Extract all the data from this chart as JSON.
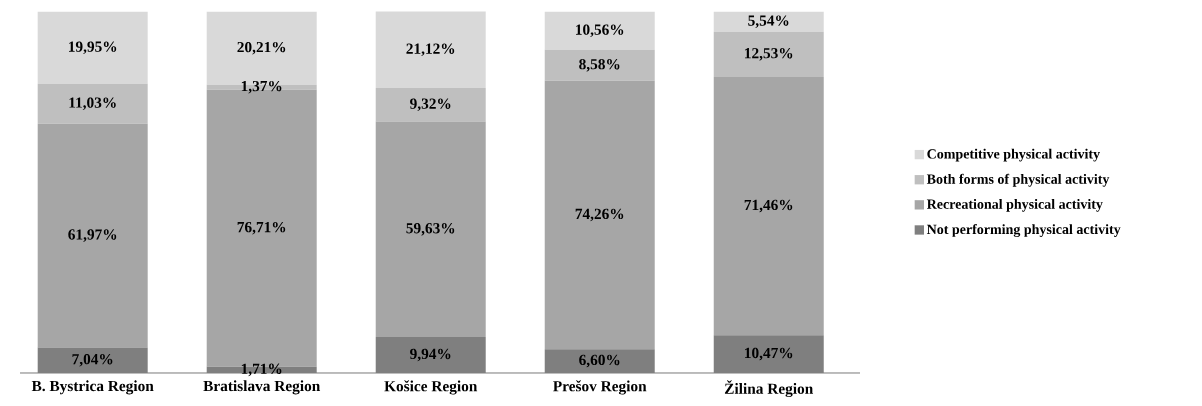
{
  "chart_data": {
    "type": "bar",
    "stacked": true,
    "legend": "right",
    "tick_labels": "x",
    "ylim": [
      0,
      100
    ],
    "categories": [
      "B. Bystrica Region",
      "Bratislava Region",
      "Košice Region",
      "Prešov Region",
      "Žilina Region"
    ],
    "series": [
      {
        "name": "Not performing physical activity",
        "color": "#7f7f7f",
        "values": [
          7.04,
          1.71,
          9.94,
          6.6,
          10.47
        ],
        "value_labels": [
          "7,04%",
          "1,71%",
          "9,94%",
          "6,60%",
          "10,47%"
        ]
      },
      {
        "name": "Recreational physical activity",
        "color": "#a6a6a6",
        "values": [
          61.97,
          76.71,
          59.63,
          74.26,
          71.46
        ],
        "value_labels": [
          "61,97%",
          "76,71%",
          "59,63%",
          "74,26%",
          "71,46%"
        ]
      },
      {
        "name": "Both forms of physical activity",
        "color": "#bfbfbf",
        "values": [
          11.03,
          1.37,
          9.32,
          8.58,
          12.53
        ],
        "value_labels": [
          "11,03%",
          "1,37%",
          "9,32%",
          "8,58%",
          "12,53%"
        ]
      },
      {
        "name": "Competitive physical activity",
        "color": "#d9d9d9",
        "values": [
          19.95,
          20.21,
          21.12,
          10.56,
          5.54
        ],
        "value_labels": [
          "19,95%",
          "20,21%",
          "21,12%",
          "10,56%",
          "5,54%"
        ]
      }
    ]
  }
}
